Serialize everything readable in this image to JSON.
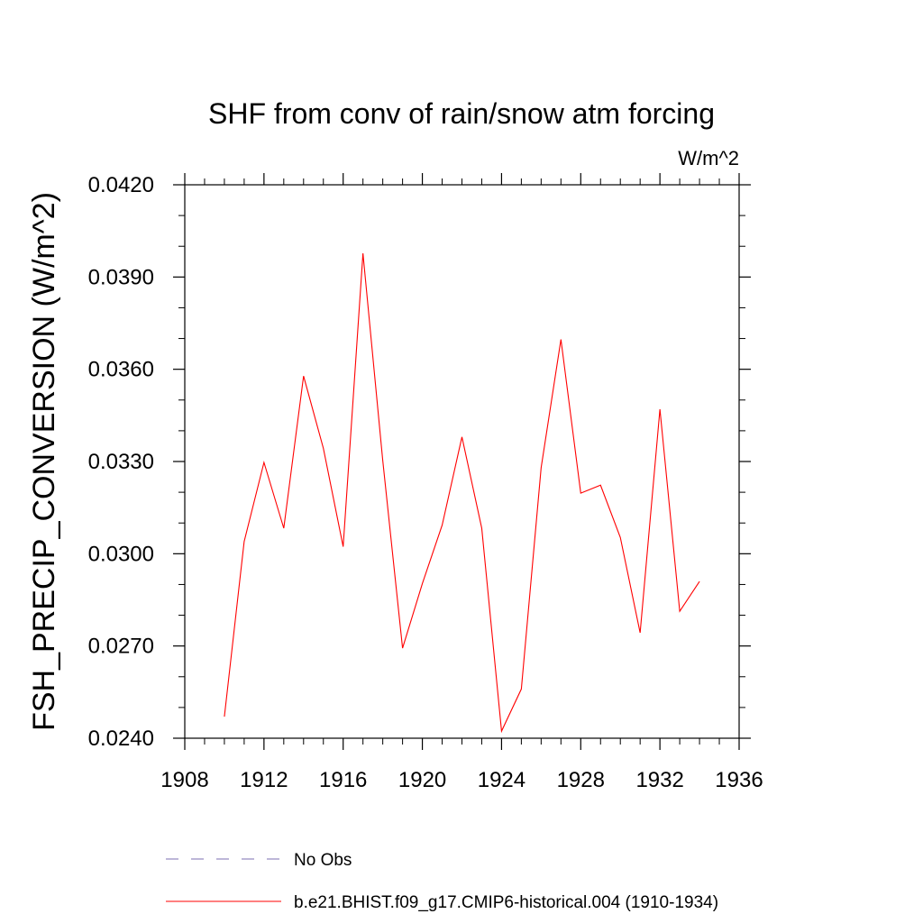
{
  "chart_data": {
    "type": "line",
    "title": "SHF from conv of rain/snow atm forcing",
    "units": "W/m^2",
    "ylabel": "FSH_PRECIP_CONVERSION  (W/m^2)",
    "xlabel": "",
    "xlim": [
      1908,
      1936
    ],
    "ylim": [
      0.024,
      0.042
    ],
    "xticks": [
      "1908",
      "1912",
      "1916",
      "1920",
      "1924",
      "1928",
      "1932",
      "1936"
    ],
    "yticks": [
      "0.0240",
      "0.0270",
      "0.0300",
      "0.0330",
      "0.0360",
      "0.0390",
      "0.0420"
    ],
    "grid": false,
    "legend": {
      "placement": "bottom"
    },
    "series": [
      {
        "name": "No Obs",
        "color": "#7b6fb0",
        "style": "dashed",
        "x": [],
        "values": []
      },
      {
        "name": "b.e21.BHIST.f09_g17.CMIP6-historical.004 (1910-1934)",
        "color": "#ff0000",
        "style": "solid",
        "x": [
          1910,
          1911,
          1912,
          1913,
          1914,
          1915,
          1916,
          1917,
          1918,
          1919,
          1920,
          1921,
          1922,
          1923,
          1924,
          1925,
          1926,
          1927,
          1928,
          1929,
          1930,
          1931,
          1932,
          1933,
          1934
        ],
        "values": [
          0.0247,
          0.0304,
          0.03297,
          0.03083,
          0.03578,
          0.03343,
          0.03023,
          0.03977,
          0.03303,
          0.02693,
          0.02903,
          0.03093,
          0.0338,
          0.03083,
          0.02423,
          0.0256,
          0.0328,
          0.03697,
          0.03197,
          0.03223,
          0.03053,
          0.02743,
          0.0347,
          0.02813,
          0.0291
        ]
      }
    ]
  }
}
